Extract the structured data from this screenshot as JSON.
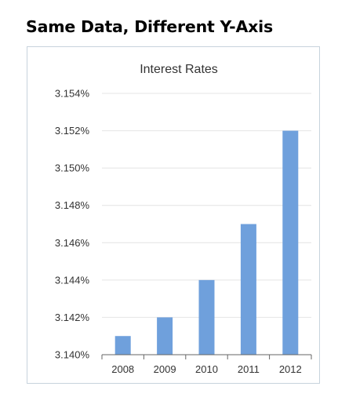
{
  "page": {
    "heading": "Same Data, Different Y-Axis"
  },
  "colors": {
    "bar": "#6fa0dc",
    "grid": "#e4e4e4",
    "axis": "#666666",
    "frame": "#c7d3dc"
  },
  "chart_data": {
    "type": "bar",
    "title": "Interest Rates",
    "xlabel": "",
    "ylabel": "",
    "categories": [
      "2008",
      "2009",
      "2010",
      "2011",
      "2012"
    ],
    "values": [
      3.141,
      3.142,
      3.144,
      3.147,
      3.152
    ],
    "ylim": [
      3.14,
      3.154
    ],
    "yticks": [
      3.14,
      3.142,
      3.144,
      3.146,
      3.148,
      3.15,
      3.152,
      3.154
    ],
    "ytick_labels": [
      "3.140%",
      "3.142%",
      "3.144%",
      "3.146%",
      "3.148%",
      "3.150%",
      "3.152%",
      "3.154%"
    ],
    "grid": true,
    "legend": "none"
  }
}
